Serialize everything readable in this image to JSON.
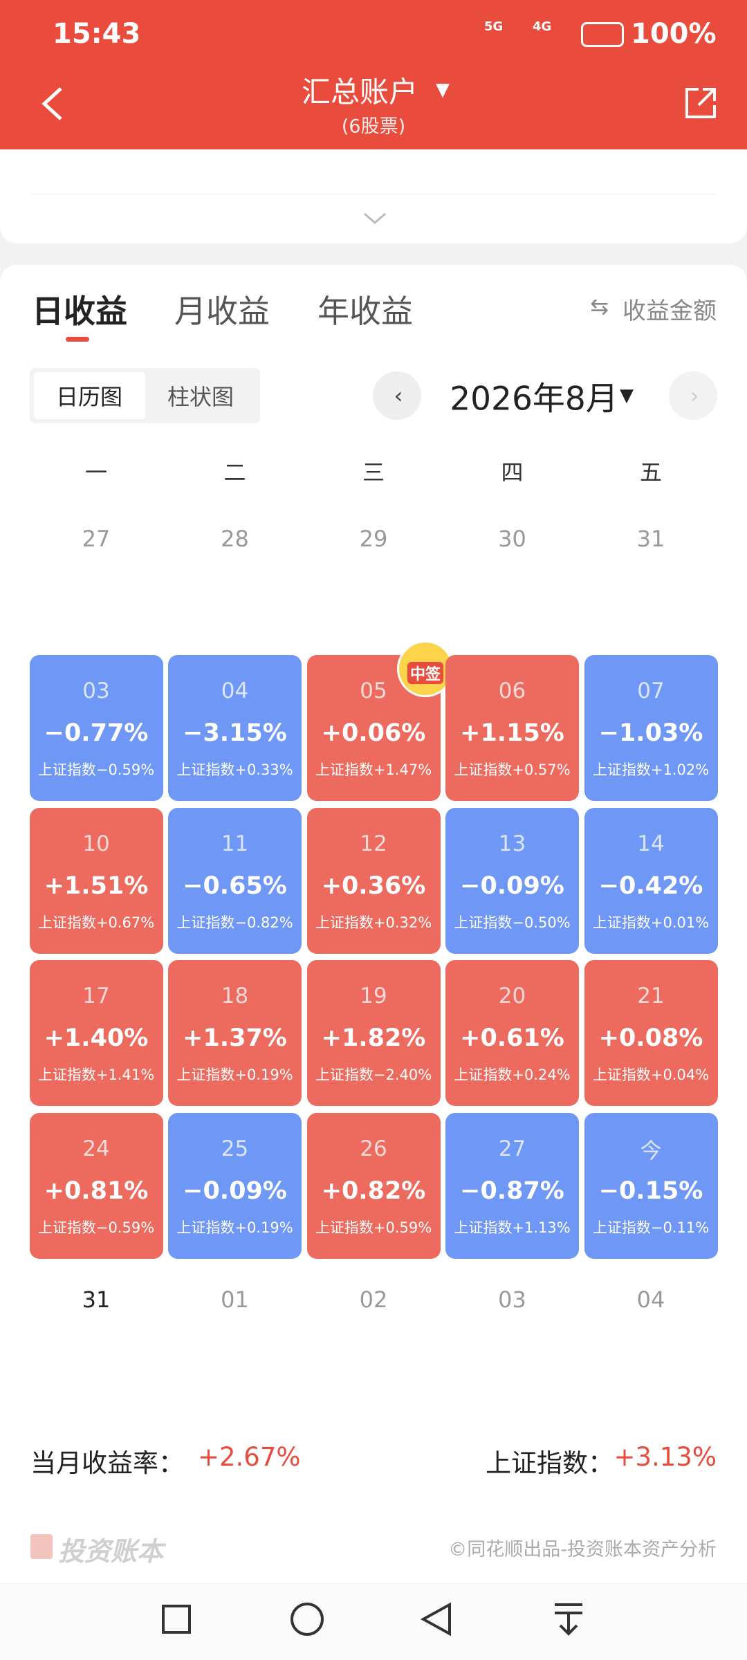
{
  "status_bar": {
    "time": "15:43",
    "network": [
      "5G",
      "4G"
    ],
    "battery": "100%"
  },
  "header": {
    "title": "汇总账户",
    "subtitle": "(6股票)"
  },
  "tabs": {
    "items": [
      "日收益",
      "月收益",
      "年收益"
    ],
    "switch": "收益金额"
  },
  "view_toggle": [
    "日历图",
    "柱状图"
  ],
  "month": "2026年8月",
  "weekdays": [
    "一",
    "二",
    "三",
    "四",
    "五"
  ],
  "prev_days": [
    "27",
    "28",
    "29",
    "30",
    "31"
  ],
  "cells": [
    [
      {
        "date": "03",
        "change": "−0.77%",
        "index": "上证指数−0.59%",
        "color": "#6f97f5"
      },
      {
        "date": "04",
        "change": "−3.15%",
        "index": "上证指数+0.33%",
        "color": "#6f97f5"
      },
      {
        "date": "05",
        "change": "+0.06%",
        "index": "上证指数+1.47%",
        "color": "#ec6b5e",
        "badge": "中签"
      },
      {
        "date": "06",
        "change": "+1.15%",
        "index": "上证指数+0.57%",
        "color": "#ec6b5e"
      },
      {
        "date": "07",
        "change": "−1.03%",
        "index": "上证指数+1.02%",
        "color": "#6f97f5"
      }
    ],
    [
      {
        "date": "10",
        "change": "+1.51%",
        "index": "上证指数+0.67%",
        "color": "#ec6b5e"
      },
      {
        "date": "11",
        "change": "−0.65%",
        "index": "上证指数−0.82%",
        "color": "#6f97f5"
      },
      {
        "date": "12",
        "change": "+0.36%",
        "index": "上证指数+0.32%",
        "color": "#ec6b5e"
      },
      {
        "date": "13",
        "change": "−0.09%",
        "index": "上证指数−0.50%",
        "color": "#6f97f5"
      },
      {
        "date": "14",
        "change": "−0.42%",
        "index": "上证指数+0.01%",
        "color": "#6f97f5"
      }
    ],
    [
      {
        "date": "17",
        "change": "+1.40%",
        "index": "上证指数+1.41%",
        "color": "#ec6b5e"
      },
      {
        "date": "18",
        "change": "+1.37%",
        "index": "上证指数+0.19%",
        "color": "#ec6b5e"
      },
      {
        "date": "19",
        "change": "+1.82%",
        "index": "上证指数−2.40%",
        "color": "#ec6b5e"
      },
      {
        "date": "20",
        "change": "+0.61%",
        "index": "上证指数+0.24%",
        "color": "#ec6b5e"
      },
      {
        "date": "21",
        "change": "+0.08%",
        "index": "上证指数+0.04%",
        "color": "#ec6b5e"
      }
    ],
    [
      {
        "date": "24",
        "change": "+0.81%",
        "index": "上证指数−0.59%",
        "color": "#ec6b5e"
      },
      {
        "date": "25",
        "change": "−0.09%",
        "index": "上证指数+0.19%",
        "color": "#6f97f5"
      },
      {
        "date": "26",
        "change": "+0.82%",
        "index": "上证指数+0.59%",
        "color": "#ec6b5e"
      },
      {
        "date": "27",
        "change": "−0.87%",
        "index": "上证指数+1.13%",
        "color": "#6f97f5"
      },
      {
        "date": "今",
        "change": "−0.15%",
        "index": "上证指数−0.11%",
        "color": "#6f97f5"
      }
    ]
  ],
  "next_days": [
    "31",
    "01",
    "02",
    "03",
    "04"
  ],
  "summary": {
    "month_label": "当月收益率：",
    "month_value": "+2.67%",
    "index_label": "上证指数：",
    "index_value": "+3.13%"
  },
  "footer": {
    "brand": "投资账本",
    "credit": "©同花顺出品-投资账本资产分析"
  }
}
